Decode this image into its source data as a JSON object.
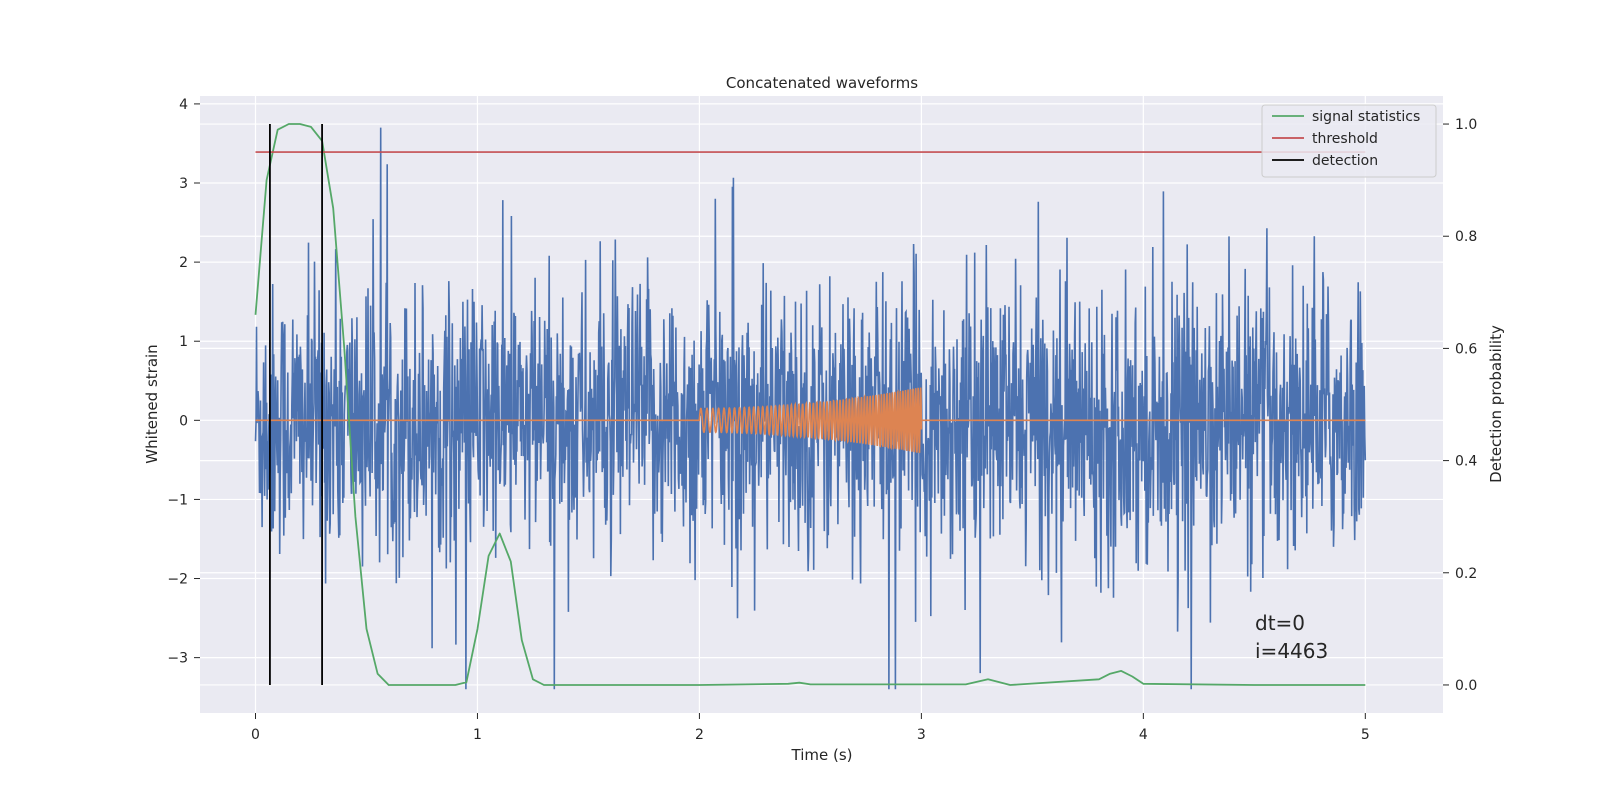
{
  "chart_data": {
    "type": "line",
    "title": "Concatenated waveforms",
    "xlabel": "Time (s)",
    "ylabel": "Whitened strain",
    "y2label": "Detection probability",
    "xlim": [
      -0.25,
      5.35
    ],
    "ylim": [
      -3.7,
      4.1
    ],
    "y2lim": [
      -0.05,
      1.05
    ],
    "x_ticks": [
      0,
      1,
      2,
      3,
      4,
      5
    ],
    "y_ticks": [
      -3,
      -2,
      -1,
      0,
      1,
      2,
      3,
      4
    ],
    "y2_ticks": [
      0.0,
      0.2,
      0.4,
      0.6,
      0.8,
      1.0
    ],
    "grid": true,
    "legend_position": "top-right",
    "legend": [
      {
        "name": "signal statistics",
        "color": "#55a868"
      },
      {
        "name": "threshold",
        "color": "#c44e52"
      },
      {
        "name": "detection",
        "color": "#000000"
      }
    ],
    "series": [
      {
        "name": "whitened strain",
        "axis": "left",
        "color": "#4c72b0",
        "x_range": [
          0,
          5
        ],
        "approx_envelope": {
          "max": 3.7,
          "min": -3.4
        },
        "description_values": [
          0.1,
          3.7,
          2.68,
          3.65,
          1.1,
          -3.4,
          2.95,
          -3.3
        ]
      },
      {
        "name": "injected chirp",
        "axis": "left",
        "color": "#dd8452",
        "x_range": [
          0,
          5
        ],
        "chirp_start": 2.0,
        "chirp_end": 3.0,
        "amplitude_start": 0.15,
        "amplitude_end": 0.42
      },
      {
        "name": "signal statistics",
        "axis": "right",
        "color": "#55a868",
        "x": [
          0,
          0.05,
          0.1,
          0.15,
          0.2,
          0.25,
          0.3,
          0.35,
          0.4,
          0.45,
          0.5,
          0.55,
          0.6,
          0.7,
          0.8,
          0.9,
          0.95,
          1.0,
          1.05,
          1.1,
          1.15,
          1.2,
          1.25,
          1.3,
          1.5,
          2.0,
          2.4,
          2.45,
          2.5,
          3.2,
          3.3,
          3.4,
          3.8,
          3.85,
          3.9,
          3.95,
          4.0,
          4.5,
          5.0
        ],
        "values": [
          0.66,
          0.9,
          0.99,
          1.0,
          1.0,
          0.995,
          0.97,
          0.85,
          0.6,
          0.3,
          0.1,
          0.02,
          0.0,
          0.0,
          0.0,
          0.0,
          0.005,
          0.1,
          0.23,
          0.27,
          0.22,
          0.08,
          0.01,
          0.0,
          0.0,
          0.0,
          0.002,
          0.004,
          0.001,
          0.001,
          0.01,
          0.0,
          0.01,
          0.02,
          0.025,
          0.015,
          0.002,
          0.0,
          0.0
        ]
      },
      {
        "name": "threshold",
        "axis": "right",
        "color": "#c44e52",
        "x": [
          0,
          5
        ],
        "values": [
          0.95,
          0.95
        ]
      },
      {
        "name": "detection",
        "axis": "right",
        "color": "#000000",
        "vlines": [
          0.065,
          0.3
        ],
        "ymin": 0.0,
        "ymax": 1.0
      }
    ],
    "annotation_lines": [
      "dt=0",
      "i=4463"
    ]
  }
}
